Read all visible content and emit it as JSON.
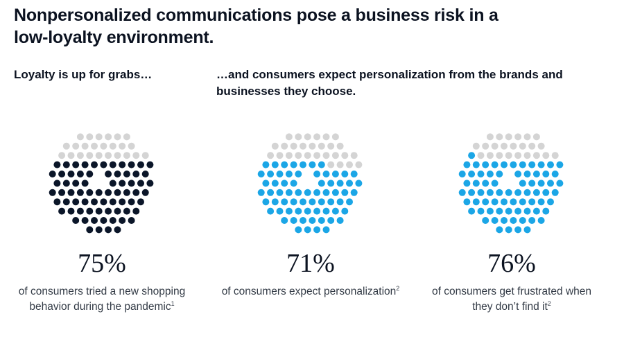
{
  "title": "Nonpersonalized communications pose a business risk in a low-loyalty environment.",
  "subtitle_left": "Loyalty is up for grabs…",
  "subtitle_right": "…and consumers expect personalization from the brands and businesses they choose.",
  "colors": {
    "empty": "#d4d4d4",
    "dark": "#0b1629",
    "blue": "#1ba6e6"
  },
  "chart_data": [
    {
      "type": "dot-circle",
      "value": 75,
      "value_label": "75%",
      "color": "#0b1629",
      "caption": "of consumers tried a new shopping behavior during the pandemic",
      "footnote": "1"
    },
    {
      "type": "dot-circle",
      "value": 71,
      "value_label": "71%",
      "color": "#1ba6e6",
      "caption": "of consumers expect personalization",
      "footnote": "2"
    },
    {
      "type": "dot-circle",
      "value": 76,
      "value_label": "76%",
      "color": "#1ba6e6",
      "caption": "of consumers get frustrated when they don’t find it",
      "footnote": "2"
    }
  ]
}
